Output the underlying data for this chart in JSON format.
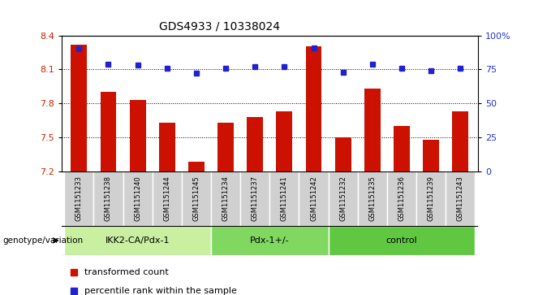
{
  "title": "GDS4933 / 10338024",
  "samples": [
    "GSM1151233",
    "GSM1151238",
    "GSM1151240",
    "GSM1151244",
    "GSM1151245",
    "GSM1151234",
    "GSM1151237",
    "GSM1151241",
    "GSM1151242",
    "GSM1151232",
    "GSM1151235",
    "GSM1151236",
    "GSM1151239",
    "GSM1151243"
  ],
  "red_values": [
    8.32,
    7.9,
    7.83,
    7.63,
    7.28,
    7.63,
    7.68,
    7.73,
    8.3,
    7.5,
    7.93,
    7.6,
    7.48,
    7.73
  ],
  "blue_values": [
    90,
    79,
    78,
    76,
    72,
    76,
    77,
    77,
    91,
    73,
    79,
    76,
    74,
    76
  ],
  "groups": [
    {
      "label": "IKK2-CA/Pdx-1",
      "start": 0,
      "end": 5,
      "color": "#c8f0a0"
    },
    {
      "label": "Pdx-1+/-",
      "start": 5,
      "end": 9,
      "color": "#80d860"
    },
    {
      "label": "control",
      "start": 9,
      "end": 14,
      "color": "#60c840"
    }
  ],
  "ylim_left": [
    7.2,
    8.4
  ],
  "ylim_right": [
    0,
    100
  ],
  "yticks_left": [
    7.2,
    7.5,
    7.8,
    8.1,
    8.4
  ],
  "yticks_right": [
    0,
    25,
    50,
    75,
    100
  ],
  "ytick_labels_right": [
    "0",
    "25",
    "50",
    "75",
    "100%"
  ],
  "grid_lines": [
    7.5,
    7.8,
    8.1
  ],
  "bar_color": "#cc1100",
  "dot_color": "#2222cc",
  "bar_width": 0.55,
  "legend_items": [
    {
      "color": "#cc1100",
      "label": "transformed count"
    },
    {
      "color": "#2222cc",
      "label": "percentile rank within the sample"
    }
  ],
  "genotype_label": "genotype/variation",
  "sample_row_color": "#d0d0d0",
  "title_fontsize": 10,
  "tick_fontsize": 8,
  "sample_fontsize": 6,
  "group_fontsize": 8,
  "legend_fontsize": 8
}
